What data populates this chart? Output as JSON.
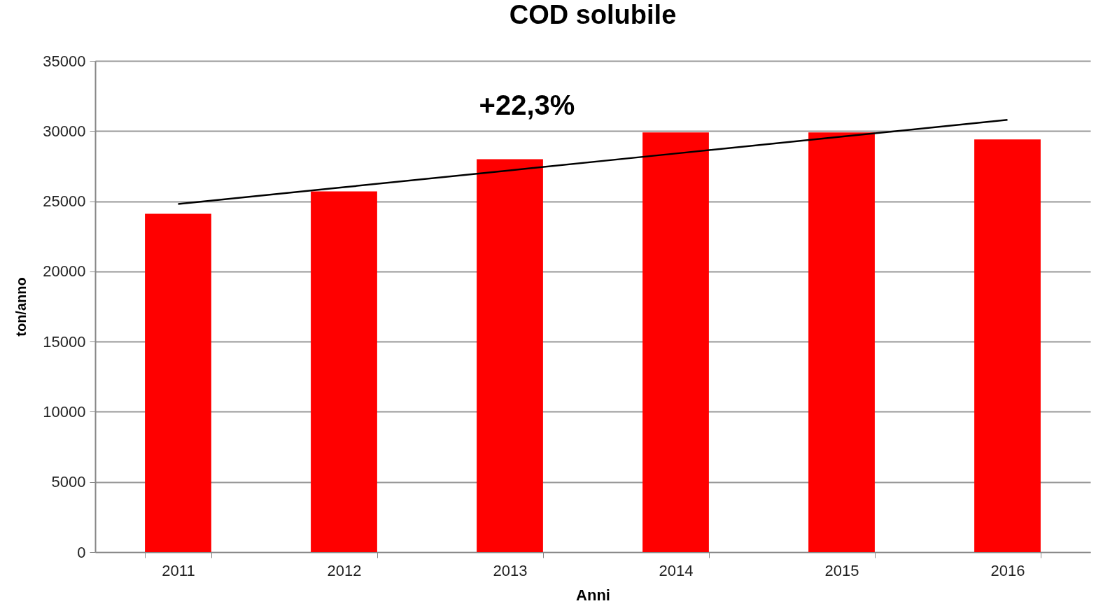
{
  "chart_data": {
    "type": "bar",
    "title": "COD solubile",
    "xlabel": "Anni",
    "ylabel": "ton/anno",
    "categories": [
      "2011",
      "2012",
      "2013",
      "2014",
      "2015",
      "2016"
    ],
    "series": [
      {
        "color": "#ff0000",
        "values": [
          24100,
          25700,
          28000,
          29900,
          29900,
          29400
        ]
      },
      {
        "type": "line",
        "color": "#000000",
        "values": [
          24800,
          26000,
          27200,
          28400,
          29600,
          30800
        ]
      }
    ],
    "annotations": [
      "+22,3%"
    ],
    "ylim": [
      0,
      35000
    ],
    "yticks": [
      0,
      5000,
      10000,
      15000,
      20000,
      25000,
      30000,
      35000
    ],
    "grid": "y"
  }
}
